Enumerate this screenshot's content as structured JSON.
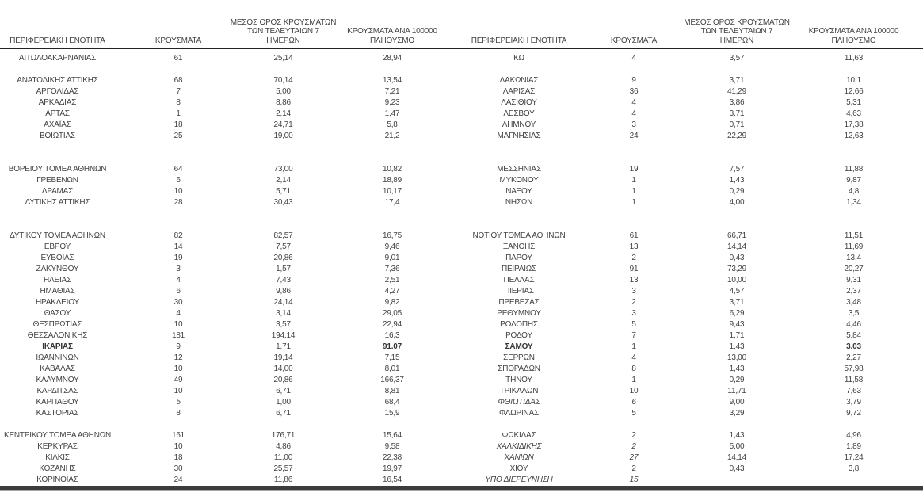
{
  "table": {
    "header": {
      "region": "ΠΕΡΙΦΕΡΕΙΑΚΗ ΕΝΟΤΗΤΑ",
      "cases": "ΚΡΟΥΣΜΑΤΑ",
      "avg7_lines": [
        "ΜΕΣΟΣ ΟΡΟΣ ΚΡΟΥΣΜΑΤΩΝ",
        "ΤΩΝ ΤΕΛΕΥΤΑΙΩΝ 7",
        "ΗΜΕΡΩΝ"
      ],
      "per100k_lines": [
        "ΚΡΟΥΣΜΑΤΑ ΑΝΑ 100000",
        "ΠΛΗΘΥΣΜΟ"
      ]
    },
    "rows": [
      {
        "left": {
          "name": "ΑΙΤΩΛΟΑΚΑΡΝΑΝΙΑΣ",
          "cases": "61",
          "avg": "25,14",
          "per": "28,94"
        },
        "right": {
          "name": "ΚΩ",
          "cases": "4",
          "avg": "3,57",
          "per": "11,63"
        }
      },
      {
        "spacer": true
      },
      {
        "left": {
          "name": "ΑΝΑΤΟΛΙΚΗΣ ΑΤΤΙΚΗΣ",
          "cases": "68",
          "avg": "70,14",
          "per": "13,54"
        },
        "right": {
          "name": "ΛΑΚΩΝΙΑΣ",
          "cases": "9",
          "avg": "3,71",
          "per": "10,1"
        }
      },
      {
        "left": {
          "name": "ΑΡΓΟΛΙΔΑΣ",
          "cases": "7",
          "avg": "5,00",
          "per": "7,21"
        },
        "right": {
          "name": "ΛΑΡΙΣΑΣ",
          "cases": "36",
          "avg": "41,29",
          "per": "12,66"
        }
      },
      {
        "left": {
          "name": "ΑΡΚΑΔΙΑΣ",
          "cases": "8",
          "avg": "8,86",
          "per": "9,23"
        },
        "right": {
          "name": "ΛΑΣΙΘΙΟΥ",
          "cases": "4",
          "avg": "3,86",
          "per": "5,31"
        }
      },
      {
        "left": {
          "name": "ΑΡΤΑΣ",
          "cases": "1",
          "avg": "2,14",
          "per": "1,47"
        },
        "right": {
          "name": "ΛΕΣΒΟΥ",
          "cases": "4",
          "avg": "3,71",
          "per": "4,63"
        }
      },
      {
        "left": {
          "name": "ΑΧΑΪΑΣ",
          "cases": "18",
          "avg": "24,71",
          "per": "5,8"
        },
        "right": {
          "name": "ΛΗΜΝΟΥ",
          "cases": "3",
          "avg": "0,71",
          "per": "17,38"
        }
      },
      {
        "left": {
          "name": "ΒΟΙΩΤΙΑΣ",
          "cases": "25",
          "avg": "19,00",
          "per": "21,2"
        },
        "right": {
          "name": "ΜΑΓΝΗΣΙΑΣ",
          "cases": "24",
          "avg": "22,29",
          "per": "12,63"
        }
      },
      {
        "spacer": true
      },
      {
        "spacer": true
      },
      {
        "left": {
          "name": "ΒΟΡΕΙΟΥ ΤΟΜΕΑ ΑΘΗΝΩΝ",
          "cases": "64",
          "avg": "73,00",
          "per": "10,82"
        },
        "right": {
          "name": "ΜΕΣΣΗΝΙΑΣ",
          "cases": "19",
          "avg": "7,57",
          "per": "11,88"
        }
      },
      {
        "left": {
          "name": "ΓΡΕΒΕΝΩΝ",
          "cases": "6",
          "avg": "2,14",
          "per": "18,89"
        },
        "right": {
          "name": "ΜΥΚΟΝΟΥ",
          "cases": "1",
          "avg": "1,43",
          "per": "9,87"
        }
      },
      {
        "left": {
          "name": "ΔΡΑΜΑΣ",
          "cases": "10",
          "avg": "5,71",
          "per": "10,17"
        },
        "right": {
          "name": "ΝΑΞΟΥ",
          "cases": "1",
          "avg": "0,29",
          "per": "4,8"
        }
      },
      {
        "left": {
          "name": "ΔΥΤΙΚΗΣ ΑΤΤΙΚΗΣ",
          "cases": "28",
          "avg": "30,43",
          "per": "17,4"
        },
        "right": {
          "name": "ΝΗΣΩΝ",
          "cases": "1",
          "avg": "4,00",
          "per": "1,34"
        }
      },
      {
        "spacer": true
      },
      {
        "spacer": true
      },
      {
        "left": {
          "name": "ΔΥΤΙΚΟΥ ΤΟΜΕΑ ΑΘΗΝΩΝ",
          "cases": "82",
          "avg": "82,57",
          "per": "16,75"
        },
        "right": {
          "name": "ΝΟΤΙΟΥ ΤΟΜΕΑ ΑΘΗΝΩΝ",
          "cases": "61",
          "avg": "66,71",
          "per": "11,51"
        }
      },
      {
        "left": {
          "name": "ΕΒΡΟΥ",
          "cases": "14",
          "avg": "7,57",
          "per": "9,46"
        },
        "right": {
          "name": "ΞΑΝΘΗΣ",
          "cases": "13",
          "avg": "14,14",
          "per": "11,69"
        }
      },
      {
        "left": {
          "name": "ΕΥΒΟΙΑΣ",
          "cases": "19",
          "avg": "20,86",
          "per": "9,01"
        },
        "right": {
          "name": "ΠΑΡΟΥ",
          "cases": "2",
          "avg": "0,43",
          "per": "13,4"
        }
      },
      {
        "left": {
          "name": "ΖΑΚΥΝΘΟΥ",
          "cases": "3",
          "avg": "1,57",
          "per": "7,36"
        },
        "right": {
          "name": "ΠΕΙΡΑΙΩΣ",
          "cases": "91",
          "avg": "73,29",
          "per": "20,27"
        }
      },
      {
        "left": {
          "name": "ΗΛΕΙΑΣ",
          "cases": "4",
          "avg": "7,43",
          "per": "2,51"
        },
        "right": {
          "name": "ΠΕΛΛΑΣ",
          "cases": "13",
          "avg": "10,00",
          "per": "9,31"
        }
      },
      {
        "left": {
          "name": "ΗΜΑΘΙΑΣ",
          "cases": "6",
          "avg": "9,86",
          "per": "4,27"
        },
        "right": {
          "name": "ΠΙΕΡΙΑΣ",
          "cases": "3",
          "avg": "4,57",
          "per": "2,37"
        }
      },
      {
        "left": {
          "name": "ΗΡΑΚΛΕΙΟΥ",
          "cases": "30",
          "avg": "24,14",
          "per": "9,82"
        },
        "right": {
          "name": "ΠΡΕΒΕΖΑΣ",
          "cases": "2",
          "avg": "3,71",
          "per": "3,48"
        }
      },
      {
        "left": {
          "name": "ΘΑΣΟΥ",
          "cases": "4",
          "avg": "3,14",
          "per": "29,05"
        },
        "right": {
          "name": "ΡΕΘΥΜΝΟΥ",
          "cases": "3",
          "avg": "6,29",
          "per": "3,5"
        }
      },
      {
        "left": {
          "name": "ΘΕΣΠΡΩΤΙΑΣ",
          "cases": "10",
          "avg": "3,57",
          "per": "22,94"
        },
        "right": {
          "name": "ΡΟΔΟΠΗΣ",
          "cases": "5",
          "avg": "9,43",
          "per": "4,46"
        }
      },
      {
        "left": {
          "name": "ΘΕΣΣΑΛΟΝΙΚΗΣ",
          "cases": "181",
          "avg": "194,14",
          "per": "16,3"
        },
        "right": {
          "name": "ΡΟΔΟΥ",
          "cases": "7",
          "avg": "1,71",
          "per": "5,84"
        }
      },
      {
        "left": {
          "name": "ΙΚΑΡΙΑΣ",
          "cases": "9",
          "avg": "1,71",
          "per": "91.07",
          "s": {
            "name": "b",
            "per": "b"
          }
        },
        "right": {
          "name": "ΣΑΜΟΥ",
          "cases": "1",
          "avg": "1,43",
          "per": "3.03",
          "s": {
            "name": "b",
            "per": "b"
          }
        }
      },
      {
        "left": {
          "name": "ΙΩΑΝΝΙΝΩΝ",
          "cases": "12",
          "avg": "19,14",
          "per": "7,15"
        },
        "right": {
          "name": "ΣΕΡΡΩΝ",
          "cases": "4",
          "avg": "13,00",
          "per": "2,27"
        }
      },
      {
        "left": {
          "name": "ΚΑΒΑΛΑΣ",
          "cases": "10",
          "avg": "14,00",
          "per": "8,01"
        },
        "right": {
          "name": "ΣΠΟΡΑΔΩΝ",
          "cases": "8",
          "avg": "1,43",
          "per": "57,98"
        }
      },
      {
        "left": {
          "name": "ΚΑΛΥΜΝΟΥ",
          "cases": "49",
          "avg": "20,86",
          "per": "166,37"
        },
        "right": {
          "name": "ΤΗΝΟΥ",
          "cases": "1",
          "avg": "0,29",
          "per": "11,58"
        }
      },
      {
        "left": {
          "name": "ΚΑΡΔΙΤΣΑΣ",
          "cases": "10",
          "avg": "6,71",
          "per": "8,81"
        },
        "right": {
          "name": "ΤΡΙΚΑΛΩΝ",
          "cases": "10",
          "avg": "11,71",
          "per": "7,63"
        }
      },
      {
        "left": {
          "name": "ΚΑΡΠΑΘΟΥ",
          "cases": "5",
          "avg": "1,00",
          "per": "68,4",
          "s": {
            "cases": "i"
          }
        },
        "right": {
          "name": "ΦΘΙΩΤΙΔΑΣ",
          "cases": "6",
          "avg": "9,00",
          "per": "3,79",
          "s": {
            "name": "i",
            "cases": "i"
          }
        }
      },
      {
        "left": {
          "name": "ΚΑΣΤΟΡΙΑΣ",
          "cases": "8",
          "avg": "6,71",
          "per": "15,9"
        },
        "right": {
          "name": "ΦΛΩΡΙΝΑΣ",
          "cases": "5",
          "avg": "3,29",
          "per": "9,72"
        }
      },
      {
        "spacer": true
      },
      {
        "left": {
          "name": "ΚΕΝΤΡΙΚΟΥ ΤΟΜΕΑ ΑΘΗΝΩΝ",
          "cases": "161",
          "avg": "176,71",
          "per": "15,64"
        },
        "right": {
          "name": "ΦΩΚΙΔΑΣ",
          "cases": "2",
          "avg": "1,43",
          "per": "4,96"
        }
      },
      {
        "left": {
          "name": "ΚΕΡΚΥΡΑΣ",
          "cases": "10",
          "avg": "4,86",
          "per": "9,58"
        },
        "right": {
          "name": "ΧΑΛΚΙΔΙΚΗΣ",
          "cases": "2",
          "avg": "5,00",
          "per": "1,89",
          "s": {
            "name": "i",
            "cases": "i"
          }
        }
      },
      {
        "left": {
          "name": "ΚΙΛΚΙΣ",
          "cases": "18",
          "avg": "11,00",
          "per": "22,38"
        },
        "right": {
          "name": "ΧΑΝΙΩΝ",
          "cases": "27",
          "avg": "14,14",
          "per": "17,24",
          "s": {
            "name": "i",
            "cases": "i"
          }
        }
      },
      {
        "left": {
          "name": "ΚΟΖΑΝΗΣ",
          "cases": "30",
          "avg": "25,57",
          "per": "19,97"
        },
        "right": {
          "name": "ΧΙΟΥ",
          "cases": "2",
          "avg": "0,43",
          "per": "3,8"
        }
      },
      {
        "left": {
          "name": "ΚΟΡΙΝΘΙΑΣ",
          "cases": "24",
          "avg": "11,86",
          "per": "16,54"
        },
        "right": {
          "name": "ΥΠΟ ΔΙΕΡΕΥΝΗΣΗ",
          "cases": "15",
          "avg": "",
          "per": "",
          "s": {
            "name": "i",
            "cases": "i"
          }
        }
      }
    ],
    "colors": {
      "text": "#424242",
      "header_rule": "#222222",
      "bottom_rule": "#3c3c3c",
      "bottom_rule_shadow": "#a8a8a8",
      "background": "#ffffff"
    }
  }
}
